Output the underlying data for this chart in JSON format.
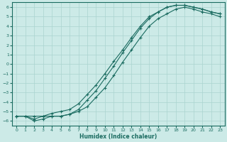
{
  "xlabel": "Humidex (Indice chaleur)",
  "bg_color": "#cceae7",
  "grid_color": "#aad4d0",
  "line_color": "#1a6b60",
  "xlim": [
    -0.5,
    23.5
  ],
  "ylim": [
    -6.5,
    6.5
  ],
  "xticks": [
    0,
    1,
    2,
    3,
    4,
    5,
    6,
    7,
    8,
    9,
    10,
    11,
    12,
    13,
    14,
    15,
    16,
    17,
    18,
    19,
    20,
    21,
    22,
    23
  ],
  "yticks": [
    -6,
    -5,
    -4,
    -3,
    -2,
    -1,
    0,
    1,
    2,
    3,
    4,
    5,
    6
  ],
  "line1_x": [
    0,
    1,
    2,
    3,
    4,
    5,
    6,
    7,
    8,
    9,
    10,
    11,
    12,
    13,
    14,
    15,
    16,
    17,
    18,
    19,
    20,
    21,
    22,
    23
  ],
  "line1_y": [
    -5.5,
    -5.5,
    -6.0,
    -5.8,
    -5.5,
    -5.5,
    -5.3,
    -4.8,
    -3.8,
    -2.8,
    -1.5,
    -0.2,
    1.2,
    2.5,
    3.8,
    4.8,
    5.5,
    6.0,
    6.2,
    6.2,
    6.0,
    5.8,
    5.5,
    5.3
  ],
  "line2_x": [
    0,
    1,
    2,
    3,
    4,
    5,
    6,
    7,
    8,
    9,
    10,
    11,
    12,
    13,
    14,
    15,
    16,
    17,
    18,
    19,
    20,
    21,
    22,
    23
  ],
  "line2_y": [
    -5.5,
    -5.5,
    -5.8,
    -5.5,
    -5.2,
    -5.0,
    -4.8,
    -4.2,
    -3.2,
    -2.2,
    -1.0,
    0.3,
    1.5,
    2.8,
    4.0,
    5.0,
    5.5,
    6.0,
    6.2,
    6.2,
    6.0,
    5.8,
    5.5,
    5.3
  ],
  "line3_x": [
    0,
    2,
    3,
    4,
    5,
    6,
    7,
    8,
    9,
    10,
    11,
    12,
    13,
    14,
    15,
    16,
    17,
    18,
    19,
    20,
    21,
    22,
    23
  ],
  "line3_y": [
    -5.5,
    -5.5,
    -5.5,
    -5.5,
    -5.5,
    -5.3,
    -5.0,
    -4.5,
    -3.5,
    -2.5,
    -1.2,
    0.2,
    1.5,
    2.8,
    4.0,
    4.8,
    5.3,
    5.8,
    6.0,
    5.8,
    5.5,
    5.3,
    5.0
  ]
}
